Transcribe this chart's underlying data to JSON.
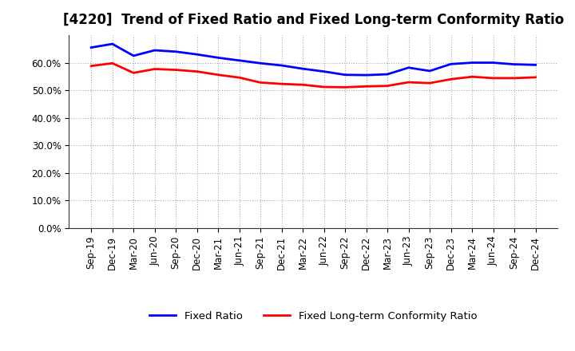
{
  "title": "[4220]  Trend of Fixed Ratio and Fixed Long-term Conformity Ratio",
  "x_labels": [
    "Sep-19",
    "Dec-19",
    "Mar-20",
    "Jun-20",
    "Sep-20",
    "Dec-20",
    "Mar-21",
    "Jun-21",
    "Sep-21",
    "Dec-21",
    "Mar-22",
    "Jun-22",
    "Sep-22",
    "Dec-22",
    "Mar-23",
    "Jun-23",
    "Sep-23",
    "Dec-23",
    "Mar-24",
    "Jun-24",
    "Sep-24",
    "Dec-24"
  ],
  "fixed_ratio": [
    0.655,
    0.668,
    0.625,
    0.645,
    0.64,
    0.63,
    0.618,
    0.608,
    0.598,
    0.59,
    0.578,
    0.568,
    0.556,
    0.555,
    0.558,
    0.582,
    0.57,
    0.595,
    0.6,
    0.6,
    0.594,
    0.592
  ],
  "fixed_lt_ratio": [
    0.588,
    0.598,
    0.563,
    0.577,
    0.574,
    0.568,
    0.556,
    0.546,
    0.528,
    0.523,
    0.52,
    0.512,
    0.511,
    0.514,
    0.516,
    0.529,
    0.526,
    0.54,
    0.549,
    0.544,
    0.544,
    0.547
  ],
  "fixed_ratio_color": "#0000FF",
  "fixed_lt_ratio_color": "#FF0000",
  "ylim": [
    0.0,
    0.7
  ],
  "yticks": [
    0.0,
    0.1,
    0.2,
    0.3,
    0.4,
    0.5,
    0.6
  ],
  "background_color": "#FFFFFF",
  "grid_color": "#AAAAAA",
  "legend_fixed_ratio": "Fixed Ratio",
  "legend_fixed_lt_ratio": "Fixed Long-term Conformity Ratio",
  "line_width": 2.0,
  "title_fontsize": 12,
  "tick_fontsize": 8.5,
  "legend_fontsize": 9.5
}
